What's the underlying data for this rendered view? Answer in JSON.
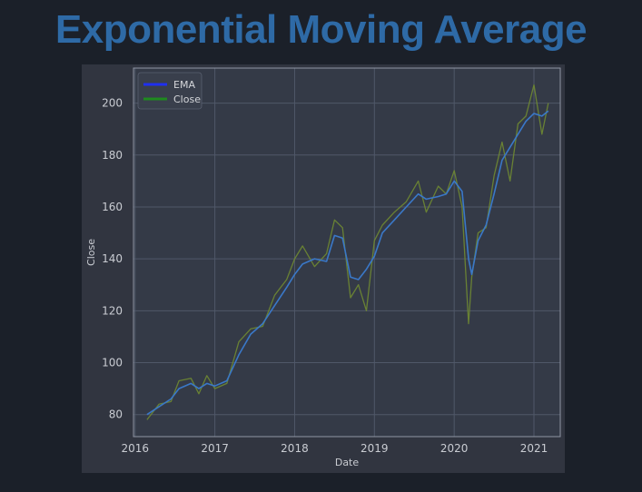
{
  "page": {
    "title": "Exponential Moving Average"
  },
  "colors": {
    "background": "#1b2029",
    "title": "#2e6aa6",
    "figure": "#313540",
    "plot_area": "#343a47",
    "grid": "#505869",
    "ema": "#3a78c8",
    "close": "#6f8a32",
    "legend_ema": "#1f2ff0",
    "legend_close": "#1f8a1f"
  },
  "chart_data": {
    "type": "line",
    "xlabel": "Date",
    "ylabel": "Close",
    "xlim": [
      2015.98,
      2021.33
    ],
    "ylim": [
      71.5,
      213.5
    ],
    "x_ticks": [
      2016,
      2017,
      2018,
      2019,
      2020,
      2021
    ],
    "x_tick_labels": [
      "2016",
      "2017",
      "2018",
      "2019",
      "2020",
      "2021"
    ],
    "y_ticks": [
      80,
      100,
      120,
      140,
      160,
      180,
      200
    ],
    "y_tick_labels": [
      "80",
      "100",
      "120",
      "140",
      "160",
      "180",
      "200"
    ],
    "grid": true,
    "legend": {
      "location": "upper-left",
      "entries": [
        "EMA",
        "Close"
      ]
    },
    "x": [
      2016.15,
      2016.3,
      2016.45,
      2016.55,
      2016.7,
      2016.8,
      2016.9,
      2017.0,
      2017.15,
      2017.3,
      2017.45,
      2017.6,
      2017.75,
      2017.9,
      2018.0,
      2018.1,
      2018.25,
      2018.4,
      2018.5,
      2018.6,
      2018.7,
      2018.8,
      2018.9,
      2019.0,
      2019.1,
      2019.25,
      2019.4,
      2019.55,
      2019.65,
      2019.8,
      2019.9,
      2020.0,
      2020.1,
      2020.18,
      2020.22,
      2020.3,
      2020.4,
      2020.5,
      2020.6,
      2020.7,
      2020.8,
      2020.9,
      2021.0,
      2021.1,
      2021.18
    ],
    "series": [
      {
        "name": "EMA",
        "values": [
          80,
          83,
          86,
          90,
          92,
          90,
          92,
          91,
          93,
          103,
          111,
          115,
          122,
          129,
          134,
          138,
          140,
          139,
          149,
          148,
          133,
          132,
          136,
          141,
          150,
          155,
          160,
          165,
          163,
          164,
          165,
          170,
          166,
          140,
          134,
          147,
          153,
          165,
          178,
          183,
          188,
          193,
          196,
          195,
          197
        ]
      },
      {
        "name": "Close",
        "values": [
          78,
          84,
          85,
          93,
          94,
          88,
          95,
          90,
          92,
          108,
          113,
          114,
          126,
          132,
          140,
          145,
          137,
          142,
          155,
          152,
          125,
          130,
          120,
          147,
          153,
          158,
          162,
          170,
          158,
          168,
          165,
          174,
          160,
          115,
          133,
          150,
          152,
          172,
          185,
          170,
          192,
          195,
          207,
          188,
          200
        ]
      }
    ]
  }
}
